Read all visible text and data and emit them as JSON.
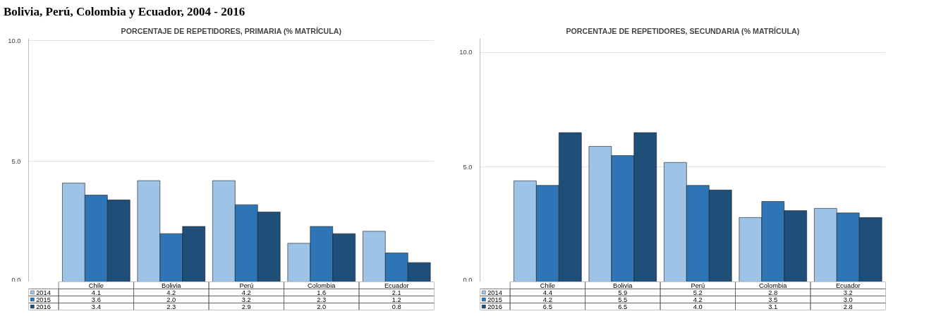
{
  "chart_data": [
    {
      "type": "bar",
      "title": "PORCENTAJE DE REPETIDORES, PRIMARIA (% MATRÍCULA)",
      "annotations": [
        "Bolivia, Perú, Colombia y Ecuador, 2004 - 2016"
      ],
      "categories": [
        "Chile",
        "Bolivia",
        "Perú",
        "Colombia",
        "Ecuador"
      ],
      "series": [
        {
          "name": "2014",
          "color": "#9dc3e6",
          "values": [
            4.1,
            4.2,
            4.2,
            1.6,
            2.1
          ],
          "value_labels": [
            "4.1",
            "4.2",
            "4.2",
            "1.6",
            "2.1"
          ]
        },
        {
          "name": "2015",
          "color": "#2e75b6",
          "values": [
            3.6,
            2.0,
            3.2,
            2.3,
            1.2
          ],
          "value_labels": [
            "3.6",
            "2.0",
            "3.2",
            "2.3",
            "1.2"
          ]
        },
        {
          "name": "2016",
          "color": "#1f4e79",
          "values": [
            3.4,
            2.3,
            2.9,
            2.0,
            0.8
          ],
          "value_labels": [
            "3.4",
            "2.3",
            "2.9",
            "2.0",
            "0.8"
          ]
        }
      ],
      "ylim": [
        0,
        10.1
      ],
      "yticks": [
        {
          "value": 0,
          "label": "0.0"
        },
        {
          "value": 5,
          "label": "5.0"
        },
        {
          "value": 10,
          "label": "10.0"
        }
      ],
      "grid": "y",
      "legend": "bottom"
    },
    {
      "type": "bar",
      "title": "PORCENTAJE DE REPETIDORES, SECUNDARIA (% MATRÍCULA)",
      "categories": [
        "Chile",
        "Bolivia",
        "Perú",
        "Colombia",
        "Ecuador"
      ],
      "series": [
        {
          "name": "2014",
          "color": "#9dc3e6",
          "values": [
            4.4,
            5.9,
            5.2,
            2.8,
            3.2
          ],
          "value_labels": [
            "4.4",
            "5.9",
            "5.2",
            "2.8",
            "3.2"
          ]
        },
        {
          "name": "2015",
          "color": "#2e75b6",
          "values": [
            4.2,
            5.5,
            4.2,
            3.5,
            3.0
          ],
          "value_labels": [
            "4.2",
            "5.5",
            "4.2",
            "3.5",
            "3.0"
          ]
        },
        {
          "name": "2016",
          "color": "#1f4e79",
          "values": [
            6.5,
            6.5,
            4.0,
            3.1,
            2.8
          ],
          "value_labels": [
            "6.5",
            "6.5",
            "4.0",
            "3.1",
            "2.8"
          ]
        }
      ],
      "ylim": [
        0,
        10.6
      ],
      "yticks": [
        {
          "value": 0,
          "label": "0.0"
        },
        {
          "value": 5,
          "label": "5.0"
        },
        {
          "value": 10,
          "label": "10.0"
        }
      ],
      "grid": "y",
      "legend": "bottom"
    }
  ]
}
